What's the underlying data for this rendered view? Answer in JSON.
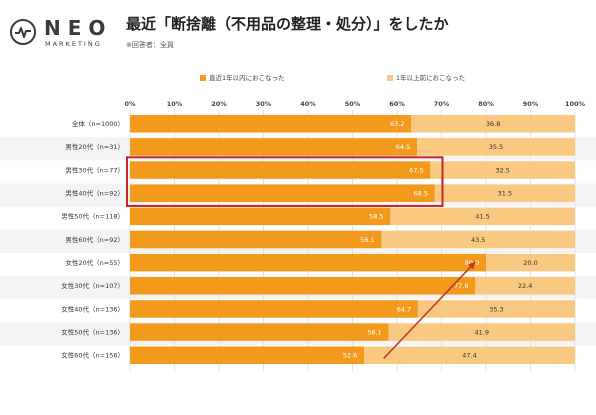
{
  "logo": {
    "word": "NEO",
    "sub": "MARKETING"
  },
  "header": {
    "title": "最近「断捨離（不用品の整理・処分）」をしたか",
    "subtitle": "※回答者：全員"
  },
  "colors": {
    "recent": "#f39a1c",
    "before": "#fac981",
    "highlight": "#c3272b",
    "arrow": "#c0392b"
  },
  "chart_data": {
    "type": "bar",
    "orientation": "horizontal",
    "stacked": true,
    "percent": true,
    "categories": [
      "全体（n=1000）",
      "男性20代（n=31）",
      "男性30代（n=77）",
      "男性40代（n=92）",
      "男性50代（n=118）",
      "男性60代（n=92）",
      "女性20代（n=55）",
      "女性30代（n=107）",
      "女性40代（n=136）",
      "女性50代（n=136）",
      "女性60代（n=156）"
    ],
    "series": [
      {
        "name": "直近1年以内におこなった",
        "values": [
          63.2,
          64.5,
          67.5,
          68.5,
          58.5,
          56.5,
          80.0,
          77.6,
          64.7,
          58.1,
          52.6
        ]
      },
      {
        "name": "1年以上前におこなった",
        "values": [
          36.8,
          35.5,
          32.5,
          31.5,
          41.5,
          43.5,
          20.0,
          22.4,
          35.3,
          41.9,
          47.4
        ]
      }
    ],
    "value_labels": [
      [
        "63.2",
        "64.5",
        "67.5",
        "68.5",
        "58.5",
        "56.5",
        "80.0",
        "77.6",
        "64.7",
        "58.1",
        "52.6"
      ],
      [
        "36.8",
        "35.5",
        "32.5",
        "31.5",
        "41.5",
        "43.5",
        "20.0",
        "22.4",
        "35.3",
        "41.9",
        "47.4"
      ]
    ],
    "xticks": [
      "0%",
      "10%",
      "20%",
      "30%",
      "40%",
      "50%",
      "60%",
      "70%",
      "80%",
      "90%",
      "100%"
    ],
    "xlim": [
      0,
      100
    ],
    "grid": true,
    "legend_position": "top",
    "highlighted_categories": [
      "男性30代（n=77）",
      "男性40代（n=92）"
    ]
  }
}
